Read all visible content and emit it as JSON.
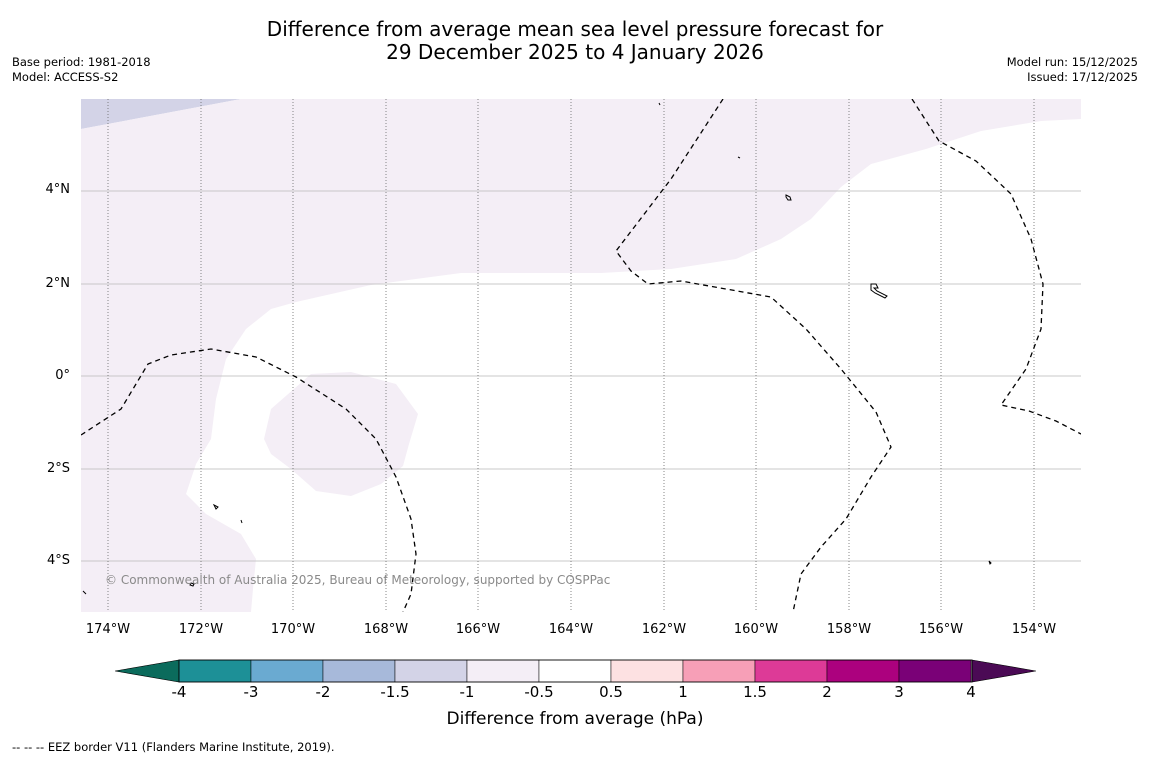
{
  "title": {
    "line1": "Difference from average mean sea level pressure forecast for",
    "line2": "29 December 2025 to 4 January 2026"
  },
  "meta_left": {
    "base_period": "Base period: 1981-2018",
    "model": "Model: ACCESS-S2"
  },
  "meta_right": {
    "model_run": "Model run: 15/12/2025",
    "issued": "Issued: 17/12/2025"
  },
  "map": {
    "lat_labels": [
      "4°N",
      "2°N",
      "0°",
      "2°S",
      "4°S"
    ],
    "lon_labels": [
      "174°W",
      "172°W",
      "170°W",
      "168°W",
      "166°W",
      "164°W",
      "162°W",
      "160°W",
      "158°W",
      "156°W",
      "154°W"
    ],
    "copyright": "© Commonwealth of Australia 2025, Bureau of Meteorology, supported by COSPPac",
    "colors": {
      "light_lavender": "#f4eef6",
      "lavender": "#d3d3e7",
      "grid": "#b8b8b8"
    }
  },
  "colorbar": {
    "label": "Difference from average (hPa)",
    "ticks": [
      "-4",
      "-3",
      "-2",
      "-1.5",
      "-1",
      "-0.5",
      "0.5",
      "1",
      "1.5",
      "2",
      "3",
      "4"
    ],
    "extend_low_color": "#0b6b5c",
    "extend_high_color": "#4b0a55",
    "bin_colors": [
      "#1d9097",
      "#6aaad1",
      "#a7b9da",
      "#d3d3e7",
      "#f4eef6",
      "#ffffff",
      "#fde1e2",
      "#f79fb7",
      "#dd3a97",
      "#ac017e",
      "#7a0177"
    ]
  },
  "footnote": "--  --  -- EEZ border V11 (Flanders Marine Institute, 2019)."
}
